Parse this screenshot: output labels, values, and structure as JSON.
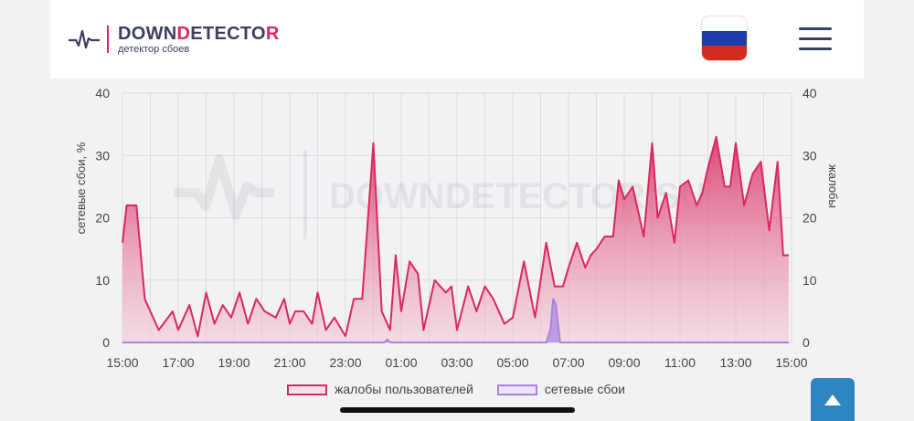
{
  "header": {
    "logo_prefix": "DOWN",
    "logo_accent": "D",
    "logo_middle": "ETECTO",
    "logo_suffix": "R",
    "subtitle": "детектор сбоев",
    "watermark": "DOWNDETECTOR.SU",
    "flag_icon": "russia-flag-icon",
    "menu_icon": "hamburger-menu-icon"
  },
  "colors": {
    "accent": "#d9285f",
    "complaints": "#d9285f",
    "outages": "#a884e0",
    "text": "#3a3f5c",
    "scroll_button": "#2e86c1"
  },
  "chart_data": {
    "type": "area",
    "x_unit": "hours",
    "x_tick_labels": [
      "15:00",
      "17:00",
      "19:00",
      "21:00",
      "23:00",
      "01:00",
      "03:00",
      "05:00",
      "07:00",
      "09:00",
      "11:00",
      "13:00",
      "15:00"
    ],
    "ylim": [
      0,
      40
    ],
    "y_ticks": [
      0,
      10,
      20,
      30,
      40
    ],
    "ylabel_left": "сетевые сбои, %",
    "ylabel_right": "жалобы",
    "grid": true,
    "legend_position": "bottom-center",
    "series": [
      {
        "name": "жалобы пользователей",
        "x": [
          0,
          0.15,
          0.5,
          0.8,
          1,
          1.3,
          1.8,
          2,
          2.4,
          2.7,
          3,
          3.3,
          3.6,
          3.9,
          4.2,
          4.5,
          4.8,
          5.1,
          5.5,
          5.8,
          6,
          6.2,
          6.5,
          6.8,
          7,
          7.3,
          7.6,
          8,
          8.3,
          8.6,
          9,
          9.3,
          9.6,
          9.8,
          10,
          10.3,
          10.6,
          10.8,
          11.2,
          11.6,
          11.8,
          12,
          12.4,
          12.7,
          13,
          13.3,
          13.7,
          14,
          14.4,
          14.8,
          15.2,
          15.5,
          15.8,
          16,
          16.3,
          16.6,
          16.8,
          17,
          17.3,
          17.6,
          17.8,
          18,
          18.3,
          18.7,
          19,
          19.2,
          19.5,
          19.8,
          20,
          20.3,
          20.6,
          20.8,
          21,
          21.3,
          21.6,
          21.8,
          22,
          22.3,
          22.6,
          22.9,
          23.2,
          23.5,
          23.7,
          23.9
        ],
        "values": [
          16,
          22,
          22,
          7,
          5,
          2,
          5,
          2,
          6,
          1,
          8,
          3,
          6,
          4,
          8,
          3,
          7,
          5,
          4,
          7,
          3,
          5,
          5,
          3,
          8,
          2,
          4,
          1,
          7,
          7,
          32,
          5,
          2,
          14,
          5,
          13,
          11,
          2,
          10,
          8,
          9,
          2,
          9,
          5,
          9,
          7,
          3,
          4,
          13,
          4,
          16,
          9,
          9,
          12,
          16,
          12,
          14,
          15,
          17,
          17,
          26,
          23,
          25,
          17,
          32,
          20,
          24,
          16,
          25,
          26,
          22,
          24,
          28,
          33,
          25,
          25,
          32,
          22,
          27,
          29,
          18,
          29,
          14,
          14
        ],
        "color": "#d9285f"
      },
      {
        "name": "сетевые сбои",
        "x": [
          0,
          9.4,
          9.5,
          9.6,
          15.2,
          15.35,
          15.45,
          15.55,
          15.7,
          23.9
        ],
        "values": [
          0,
          0,
          0.5,
          0,
          0,
          2,
          7,
          6,
          0,
          0
        ],
        "color": "#a884e0"
      }
    ]
  }
}
